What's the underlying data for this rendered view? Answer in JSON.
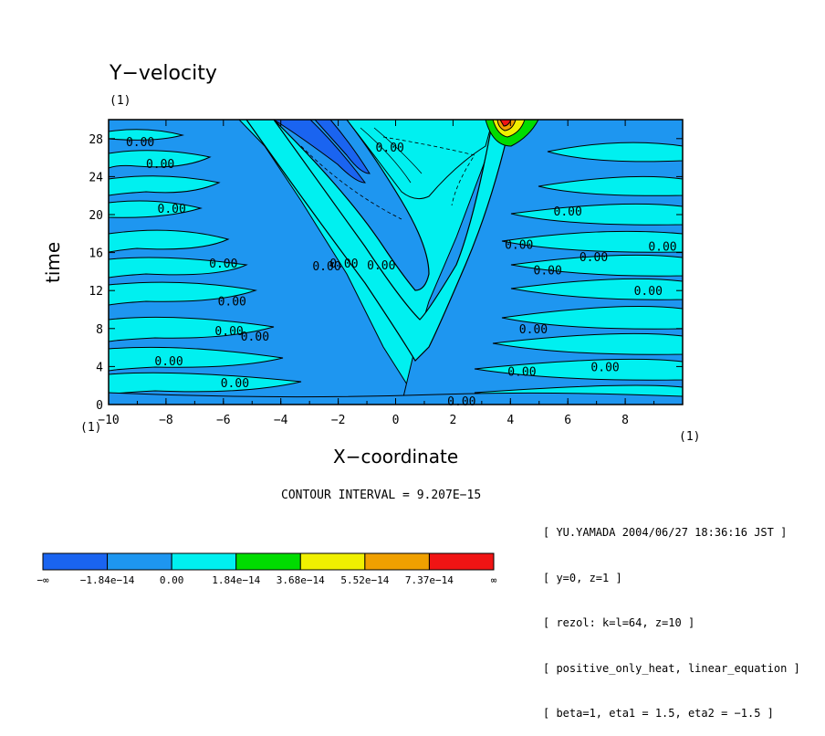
{
  "chart_data": {
    "type": "heatmap",
    "title": "Y−velocity",
    "subtitle": "(1)",
    "xlabel": "X−coordinate",
    "ylabel": "time",
    "x_unit": "(1)",
    "y_unit": "(1)",
    "xlim": [
      -10,
      10
    ],
    "ylim": [
      0,
      30
    ],
    "x_ticks": [
      -10,
      -8,
      -6,
      -4,
      -2,
      0,
      2,
      4,
      6,
      8
    ],
    "y_ticks": [
      0,
      4,
      8,
      12,
      16,
      20,
      24,
      28
    ],
    "x_tick_labels": [
      "−10",
      "−8",
      "−6",
      "−4",
      "−2",
      "0",
      "2",
      "4",
      "6",
      "8"
    ],
    "y_tick_labels": [
      "0",
      "4",
      "8",
      "12",
      "16",
      "20",
      "24",
      "28"
    ],
    "contour_interval_text": "CONTOUR INTERVAL = 9.207E−15",
    "contour_labels": [
      {
        "text": "0.00",
        "x": -8.9,
        "y": 27.6
      },
      {
        "text": "0.00",
        "x": -8.2,
        "y": 25.3
      },
      {
        "text": "0.00",
        "x": -7.8,
        "y": 20.6
      },
      {
        "text": "0.00",
        "x": -6.0,
        "y": 14.8
      },
      {
        "text": "0.00",
        "x": -5.7,
        "y": 10.8
      },
      {
        "text": "0.00",
        "x": -5.8,
        "y": 7.7
      },
      {
        "text": "0.00",
        "x": -4.9,
        "y": 7.1
      },
      {
        "text": "0.00",
        "x": -7.9,
        "y": 4.5
      },
      {
        "text": "0.00",
        "x": -5.6,
        "y": 2.2
      },
      {
        "text": "0.00",
        "x": -2.4,
        "y": 14.5
      },
      {
        "text": "0.00",
        "x": -1.8,
        "y": 14.8
      },
      {
        "text": "0.00",
        "x": -0.5,
        "y": 14.6
      },
      {
        "text": "0.00",
        "x": -0.2,
        "y": 27.0
      },
      {
        "text": "0.00",
        "x": 4.3,
        "y": 16.8
      },
      {
        "text": "0.00",
        "x": 5.3,
        "y": 14.1
      },
      {
        "text": "0.00",
        "x": 6.0,
        "y": 20.3
      },
      {
        "text": "0.00",
        "x": 6.9,
        "y": 15.5
      },
      {
        "text": "0.00",
        "x": 8.8,
        "y": 11.9
      },
      {
        "text": "0.00",
        "x": 9.3,
        "y": 16.6
      },
      {
        "text": "0.00",
        "x": 4.8,
        "y": 7.9
      },
      {
        "text": "0.00",
        "x": 4.4,
        "y": 3.4
      },
      {
        "text": "0.00",
        "x": 7.3,
        "y": 3.9
      },
      {
        "text": "0.00",
        "x": 2.3,
        "y": 0.3
      }
    ],
    "colorbar": {
      "colors": [
        "#1a64f0",
        "#1e96f0",
        "#00f0f0",
        "#00dc00",
        "#f0f000",
        "#f0a000",
        "#f01414"
      ],
      "labels": [
        "−∞",
        "−1.84e−14",
        "0.00",
        "1.84e−14",
        "3.68e−14",
        "5.52e−14",
        "7.37e−14",
        "∞"
      ]
    }
  },
  "info_lines": [
    "[ YU.YAMADA 2004/06/27 18:36:16 JST ]",
    "[ y=0, z=1 ]",
    "[ rezol: k=l=64, z=10 ]",
    "[ positive_only_heat, linear_equation ]",
    "[ beta=1, eta1 = 1.5, eta2 = −1.5 ]"
  ]
}
